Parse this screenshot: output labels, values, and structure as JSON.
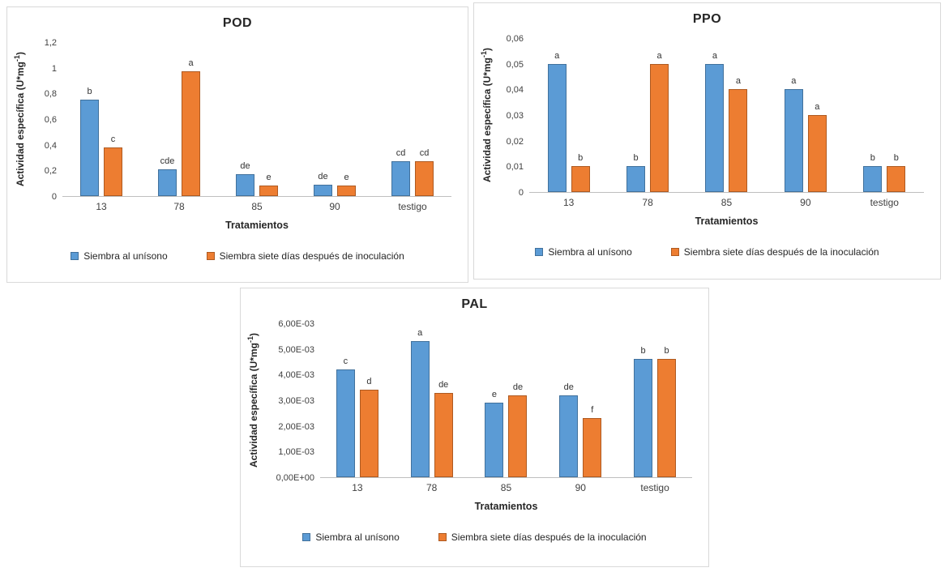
{
  "colors": {
    "series_blue": "#5B9BD5",
    "series_blue_border": "#41719C",
    "series_orange": "#ED7D31",
    "series_orange_border": "#AE5A21",
    "axis_line": "#BFBFBF",
    "panel_border": "#D9D9D9",
    "text": "#262626"
  },
  "chart_data": [
    {
      "type": "bar",
      "title": "POD",
      "xlabel": "Tratamientos",
      "ylabel_pre": "Actividad específica (U*mg",
      "ylabel_sup": "-1",
      "ylabel_post": ")",
      "categories": [
        "13",
        "78",
        "85",
        "90",
        "testigo"
      ],
      "ylim": [
        0,
        1.2
      ],
      "grid": false,
      "legend_position": "bottom",
      "yticks": [
        {
          "v": 0,
          "label": "0"
        },
        {
          "v": 0.2,
          "label": "0,2"
        },
        {
          "v": 0.4,
          "label": "0,4"
        },
        {
          "v": 0.6,
          "label": "0,6"
        },
        {
          "v": 0.8,
          "label": "0,8"
        },
        {
          "v": 1,
          "label": "1"
        },
        {
          "v": 1.2,
          "label": "1,2"
        }
      ],
      "series": [
        {
          "name": "Siembra al unísono",
          "color": "#5B9BD5",
          "border_color": "#41719C",
          "values": [
            0.75,
            0.21,
            0.17,
            0.09,
            0.27
          ],
          "letters": [
            "b",
            "cde",
            "de",
            "de",
            "cd"
          ]
        },
        {
          "name": "Siembra siete días después de inoculación",
          "color": "#ED7D31",
          "border_color": "#AE5A21",
          "values": [
            0.38,
            0.97,
            0.08,
            0.08,
            0.27
          ],
          "letters": [
            "c",
            "a",
            "e",
            "e",
            "cd"
          ]
        }
      ]
    },
    {
      "type": "bar",
      "title": "PPO",
      "xlabel": "Tratamientos",
      "ylabel_pre": "Actividad específica (U*mg",
      "ylabel_sup": "-1",
      "ylabel_post": ")",
      "categories": [
        "13",
        "78",
        "85",
        "90",
        "testigo"
      ],
      "ylim": [
        0,
        0.06
      ],
      "grid": false,
      "legend_position": "bottom",
      "yticks": [
        {
          "v": 0,
          "label": "0"
        },
        {
          "v": 0.01,
          "label": "0,01"
        },
        {
          "v": 0.02,
          "label": "0,02"
        },
        {
          "v": 0.03,
          "label": "0,03"
        },
        {
          "v": 0.04,
          "label": "0,04"
        },
        {
          "v": 0.05,
          "label": "0,05"
        },
        {
          "v": 0.06,
          "label": "0,06"
        }
      ],
      "series": [
        {
          "name": "Siembra al unísono",
          "color": "#5B9BD5",
          "border_color": "#41719C",
          "values": [
            0.05,
            0.01,
            0.05,
            0.04,
            0.01
          ],
          "letters": [
            "a",
            "b",
            "a",
            "a",
            "b"
          ]
        },
        {
          "name": "Siembra siete días después de la inoculación",
          "color": "#ED7D31",
          "border_color": "#AE5A21",
          "values": [
            0.01,
            0.05,
            0.04,
            0.03,
            0.01
          ],
          "letters": [
            "b",
            "a",
            "a",
            "a",
            "b"
          ]
        }
      ]
    },
    {
      "type": "bar",
      "title": "PAL",
      "xlabel": "Tratamientos",
      "ylabel_pre": "Actividad específica (U*mg",
      "ylabel_sup": "-1",
      "ylabel_post": ")",
      "categories": [
        "13",
        "78",
        "85",
        "90",
        "testigo"
      ],
      "ylim": [
        0,
        0.006
      ],
      "grid": false,
      "legend_position": "bottom",
      "yticks": [
        {
          "v": 0,
          "label": "0,00E+00"
        },
        {
          "v": 0.001,
          "label": "1,00E-03"
        },
        {
          "v": 0.002,
          "label": "2,00E-03"
        },
        {
          "v": 0.003,
          "label": "3,00E-03"
        },
        {
          "v": 0.004,
          "label": "4,00E-03"
        },
        {
          "v": 0.005,
          "label": "5,00E-03"
        },
        {
          "v": 0.006,
          "label": "6,00E-03"
        }
      ],
      "series": [
        {
          "name": "Siembra al unísono",
          "color": "#5B9BD5",
          "border_color": "#41719C",
          "values": [
            0.0042,
            0.0053,
            0.0029,
            0.0032,
            0.0046
          ],
          "letters": [
            "c",
            "a",
            "e",
            "de",
            "b"
          ]
        },
        {
          "name": "Siembra siete días después de la inoculación",
          "color": "#ED7D31",
          "border_color": "#AE5A21",
          "values": [
            0.0034,
            0.0033,
            0.0032,
            0.0023,
            0.0046
          ],
          "letters": [
            "d",
            "de",
            "de",
            "f",
            "b"
          ]
        }
      ]
    }
  ]
}
